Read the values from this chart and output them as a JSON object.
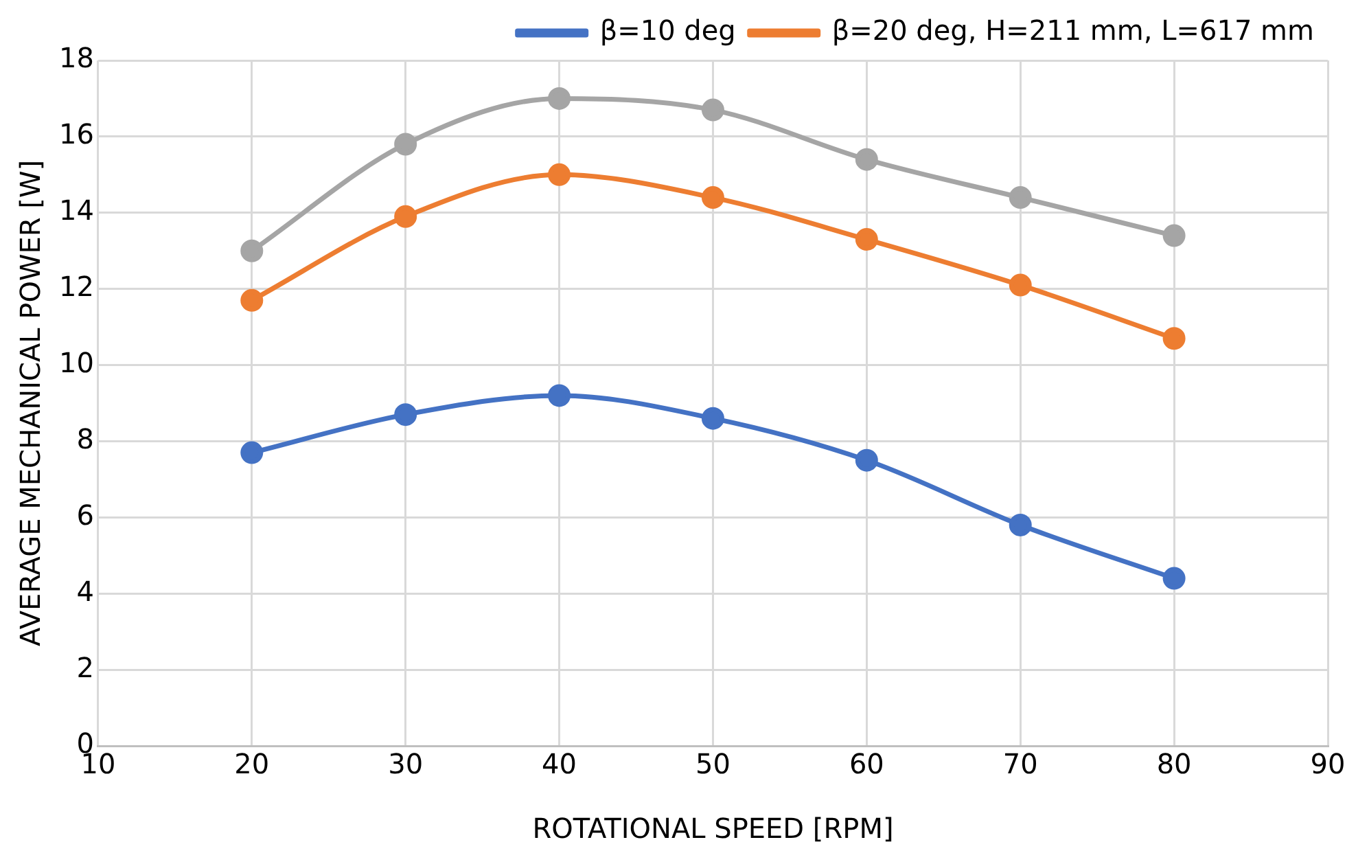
{
  "chart_data": {
    "type": "line",
    "xlabel": "ROTATIONAL SPEED [RPM]",
    "ylabel": "AVERAGE MECHANICAL POWER [W]",
    "x": [
      20,
      30,
      40,
      50,
      60,
      70,
      80
    ],
    "series": [
      {
        "name": "β=10 deg",
        "color": "#4472c4",
        "values": [
          7.7,
          8.7,
          9.2,
          8.6,
          7.5,
          5.8,
          4.4
        ]
      },
      {
        "name": "β=20 deg, H=211 mm, L=617 mm",
        "color": "#ed7d31",
        "values": [
          11.7,
          13.9,
          15.0,
          14.4,
          13.3,
          12.1,
          10.7
        ]
      },
      {
        "color": "#a5a5a5",
        "values": [
          13.0,
          15.8,
          17.0,
          16.7,
          15.4,
          14.4,
          13.4
        ]
      }
    ],
    "xlim": [
      10,
      90
    ],
    "xticks": [
      10,
      20,
      30,
      40,
      50,
      60,
      70,
      80,
      90
    ],
    "ylim": [
      0,
      18
    ],
    "yticks": [
      0,
      2,
      4,
      6,
      8,
      10,
      12,
      14,
      16,
      18
    ],
    "grid": true,
    "legend": "top right",
    "marker": "circle",
    "line_style": "solid"
  }
}
